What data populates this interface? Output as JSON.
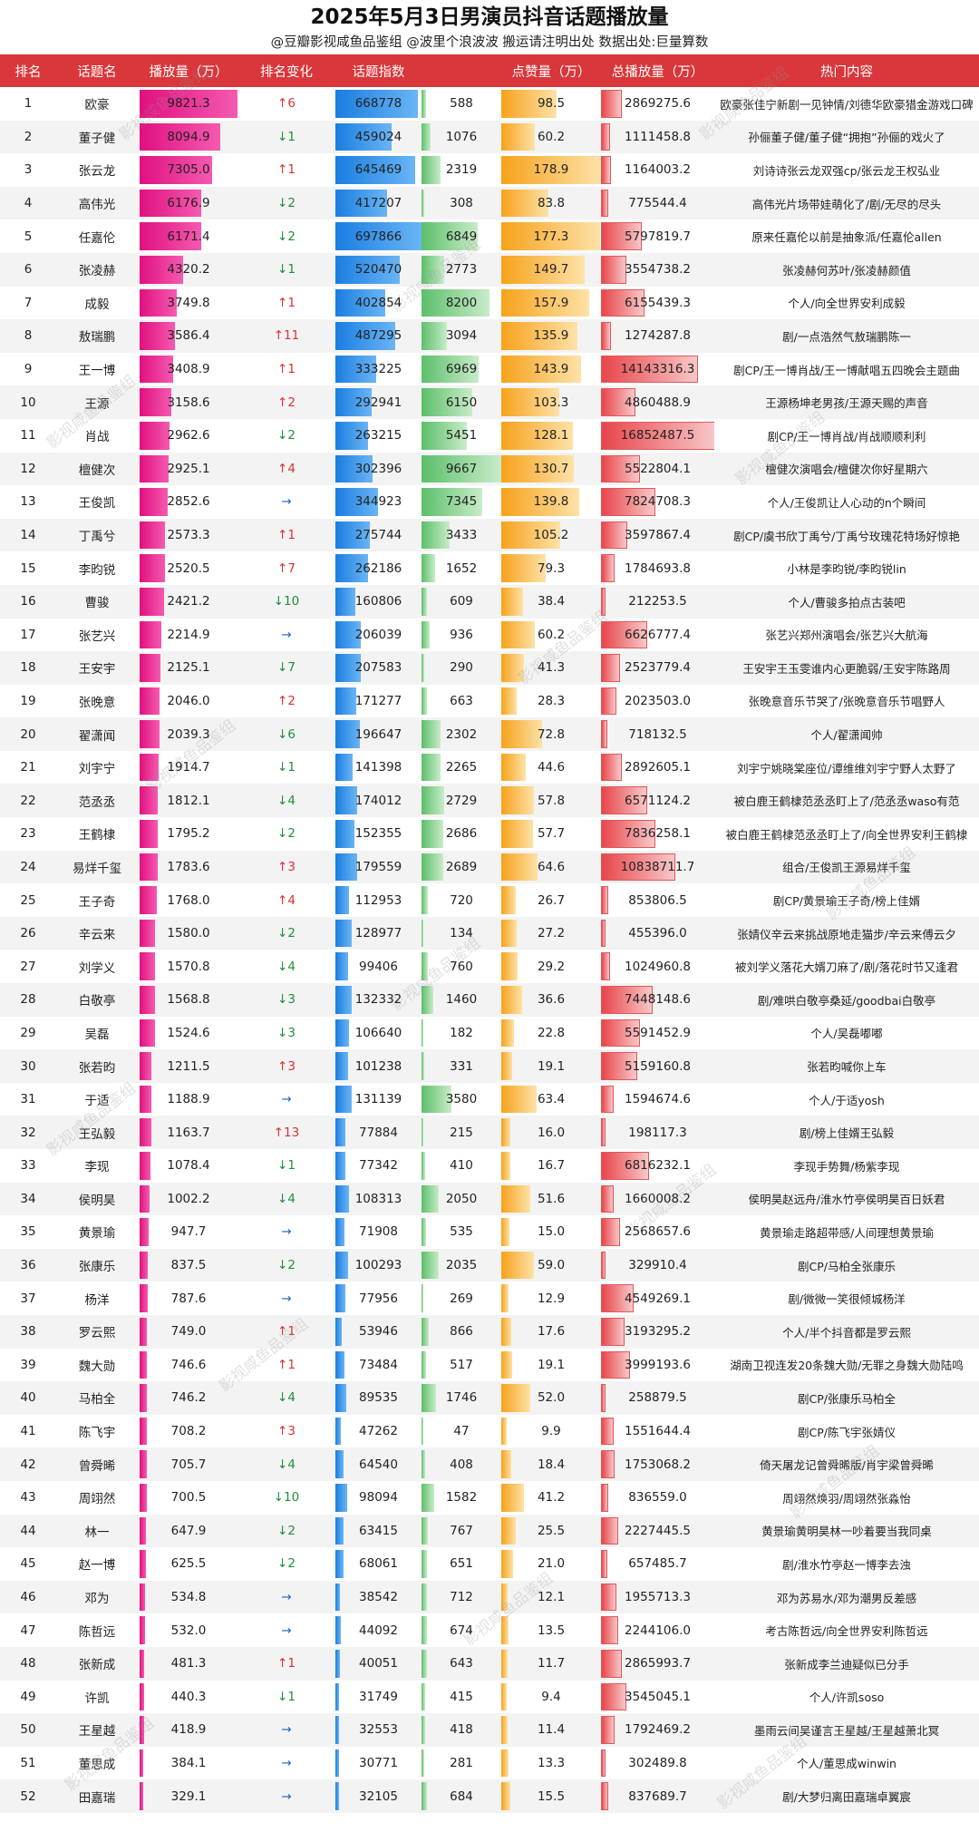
{
  "title": "2025年5月3日男演员抖音话题播放量",
  "subtitle": "@豆瓣影视咸鱼品鉴组 @波里个浪波波  搬运请注明出处  数据出处:巨量算数",
  "watermark": "影视咸鱼品鉴组",
  "headers": [
    "排名",
    "话题名",
    "播放量（万）",
    "排名变化",
    "话题指数",
    "",
    "点赞量（万）",
    "总播放量（万）",
    "热门内容"
  ],
  "colors": {
    "header_bg": "#d9373b",
    "play": "#e0107f",
    "index": "#1a7de0",
    "green": "#5cbf6a",
    "like": "#f7a21b",
    "total": "#e8454a",
    "up": "#e03030",
    "down": "#1f8f3a",
    "flat": "#1a5fd0"
  },
  "chart_data": {
    "type": "table",
    "columns": [
      "排名",
      "话题名",
      "播放量（万）",
      "排名变化",
      "话题指数",
      "",
      "点赞量（万）",
      "总播放量（万）",
      "热门内容"
    ],
    "rows": [
      [
        1,
        "欧豪",
        9821.3,
        "↑6",
        668778,
        588,
        98.5,
        2869275.6,
        "欧豪张佳宁新剧一见钟情/刘德华欧豪猎金游戏口碑"
      ],
      [
        2,
        "董子健",
        8094.9,
        "↓1",
        459024,
        1076,
        60.2,
        1111458.8,
        "孙俪董子健/董子健“拥抱”孙俪的戏火了"
      ],
      [
        3,
        "张云龙",
        7305.0,
        "↑1",
        645469,
        2319,
        178.9,
        1164003.2,
        "刘诗诗张云龙双强cp/张云龙王权弘业"
      ],
      [
        4,
        "高伟光",
        6176.9,
        "↓2",
        417207,
        308,
        83.8,
        775544.4,
        "高伟光片场带娃萌化了/剧/无尽的尽头"
      ],
      [
        5,
        "任嘉伦",
        6171.4,
        "↓2",
        697866,
        6849,
        177.3,
        5797819.7,
        "原来任嘉伦以前是抽象派/任嘉伦allen"
      ],
      [
        6,
        "张凌赫",
        4320.2,
        "↓1",
        520470,
        2773,
        149.7,
        3554738.2,
        "张凌赫何苏叶/张凌赫颜值"
      ],
      [
        7,
        "成毅",
        3749.8,
        "↑1",
        402854,
        8200,
        157.9,
        6155439.3,
        "个人/向全世界安利成毅"
      ],
      [
        8,
        "敖瑞鹏",
        3586.4,
        "↑11",
        487295,
        3094,
        135.9,
        1274287.8,
        "剧/一点浩然气敖瑞鹏陈一"
      ],
      [
        9,
        "王一博",
        3408.9,
        "↑1",
        333225,
        6969,
        143.9,
        14143316.3,
        "剧CP/王一博肖战/王一博献唱五四晚会主题曲"
      ],
      [
        10,
        "王源",
        3158.6,
        "↑2",
        292941,
        6150,
        103.3,
        4860488.9,
        "王源杨坤老男孩/王源天赐的声音"
      ],
      [
        11,
        "肖战",
        2962.6,
        "↓2",
        263215,
        5451,
        128.1,
        16852487.5,
        "剧CP/王一博肖战/肖战顺顺利利"
      ],
      [
        12,
        "檀健次",
        2925.1,
        "↑4",
        302396,
        9667,
        130.7,
        5522804.1,
        "檀健次演唱会/檀健次你好星期六"
      ],
      [
        13,
        "王俊凯",
        2852.6,
        "→",
        344923,
        7345,
        139.8,
        7824708.3,
        "个人/王俊凯让人心动的n个瞬间"
      ],
      [
        14,
        "丁禹兮",
        2573.3,
        "↑1",
        275744,
        3433,
        105.2,
        3597867.4,
        "剧CP/虞书欣丁禹兮/丁禹兮玫瑰花特场好惊艳"
      ],
      [
        15,
        "李昀锐",
        2520.5,
        "↑7",
        262186,
        1652,
        79.3,
        1784693.8,
        "小林是李昀锐/李昀锐lin"
      ],
      [
        16,
        "曹骏",
        2421.2,
        "↓10",
        160806,
        609,
        38.4,
        212253.5,
        "个人/曹骏多拍点古装吧"
      ],
      [
        17,
        "张艺兴",
        2214.9,
        "→",
        206039,
        936,
        60.2,
        6626777.4,
        "张艺兴郑州演唱会/张艺兴大航海"
      ],
      [
        18,
        "王安宇",
        2125.1,
        "↓7",
        207583,
        290,
        41.3,
        2523779.4,
        "王安宇王玉雯谁内心更脆弱/王安宇陈路周"
      ],
      [
        19,
        "张晚意",
        2046.0,
        "↑2",
        171277,
        663,
        28.3,
        2023503.0,
        "张晚意音乐节哭了/张晚意音乐节唱野人"
      ],
      [
        20,
        "翟潇闻",
        2039.3,
        "↓6",
        196647,
        2302,
        72.8,
        718132.5,
        "个人/翟潇闻帅"
      ],
      [
        21,
        "刘宇宁",
        1914.7,
        "↓1",
        141398,
        2265,
        44.6,
        2892605.1,
        "刘宇宁姚晓棠座位/谭维维刘宇宁野人太野了"
      ],
      [
        22,
        "范丞丞",
        1812.1,
        "↓4",
        174012,
        2729,
        57.8,
        6571124.2,
        "被白鹿王鹤棣范丞丞盯上了/范丞丞waso有范"
      ],
      [
        23,
        "王鹤棣",
        1795.2,
        "↓2",
        152355,
        2686,
        57.7,
        7836258.1,
        "被白鹿王鹤棣范丞丞盯上了/向全世界安利王鹤棣"
      ],
      [
        24,
        "易烊千玺",
        1783.6,
        "↑3",
        179559,
        2689,
        64.6,
        10838711.7,
        "组合/王俊凯王源易烊千玺"
      ],
      [
        25,
        "王子奇",
        1768.0,
        "↑4",
        112953,
        720,
        26.7,
        853806.5,
        "剧CP/黄景瑜王子奇/榜上佳婿"
      ],
      [
        26,
        "辛云来",
        1580.0,
        "↓2",
        128977,
        134,
        27.2,
        455396.0,
        "张婧仪辛云来挑战原地走猫步/辛云来傅云夕"
      ],
      [
        27,
        "刘学义",
        1570.8,
        "↓4",
        99406,
        760,
        29.2,
        1024960.8,
        "被刘学义落花大婿刀麻了/剧/落花时节又逢君"
      ],
      [
        28,
        "白敬亭",
        1568.8,
        "↓3",
        132332,
        1460,
        36.6,
        7448148.6,
        "剧/难哄白敬亭桑延/goodbai白敬亭"
      ],
      [
        29,
        "吴磊",
        1524.6,
        "↓3",
        106640,
        182,
        22.8,
        5591452.9,
        "个人/吴磊嘟嘟"
      ],
      [
        30,
        "张若昀",
        1211.5,
        "↑3",
        101238,
        331,
        19.1,
        5159160.8,
        "张若昀喊你上车"
      ],
      [
        31,
        "于适",
        1188.9,
        "→",
        131139,
        3580,
        63.4,
        1594674.6,
        "个人/于适yosh"
      ],
      [
        32,
        "王弘毅",
        1163.7,
        "↑13",
        77884,
        215,
        16.0,
        198117.3,
        "剧/榜上佳婿王弘毅"
      ],
      [
        33,
        "李现",
        1078.4,
        "↓1",
        77342,
        410,
        16.7,
        6816232.1,
        "李现手势舞/杨紫李现"
      ],
      [
        34,
        "侯明昊",
        1002.2,
        "↓4",
        108313,
        2050,
        51.6,
        1660008.2,
        "侯明昊赵远舟/淮水竹亭侯明昊百日妖君"
      ],
      [
        35,
        "黄景瑜",
        947.7,
        "→",
        71908,
        535,
        15.0,
        2568657.6,
        "黄景瑜走路超带感/人间理想黄景瑜"
      ],
      [
        36,
        "张康乐",
        837.5,
        "↓2",
        100293,
        2035,
        59.0,
        329910.4,
        "剧CP/马柏全张康乐"
      ],
      [
        37,
        "杨洋",
        787.6,
        "→",
        77956,
        269,
        12.9,
        4549269.1,
        "剧/微微一笑很倾城杨洋"
      ],
      [
        38,
        "罗云熙",
        749.0,
        "↑1",
        53946,
        866,
        17.6,
        3193295.2,
        "个人/半个抖音都是罗云熙"
      ],
      [
        39,
        "魏大勋",
        746.6,
        "↑1",
        73484,
        517,
        19.1,
        3999193.6,
        "湖南卫视连发20条魏大勋/无罪之身魏大勋陆鸣"
      ],
      [
        40,
        "马柏全",
        746.2,
        "↓4",
        89535,
        1746,
        52.0,
        258879.5,
        "剧CP/张康乐马柏全"
      ],
      [
        41,
        "陈飞宇",
        708.2,
        "↑3",
        47262,
        47,
        9.9,
        1551644.4,
        "剧CP/陈飞宇张婧仪"
      ],
      [
        42,
        "曾舜晞",
        705.7,
        "↓4",
        64540,
        408,
        18.4,
        1753068.2,
        "倚天屠龙记曾舜晞版/肖宇梁曾舜晞"
      ],
      [
        43,
        "周翊然",
        700.5,
        "↓10",
        98094,
        1582,
        41.2,
        836559.0,
        "周翊然焕羽/周翊然张淼怡"
      ],
      [
        44,
        "林一",
        647.9,
        "↓2",
        63415,
        767,
        25.5,
        2227445.5,
        "黄景瑜黄明昊林一吵着要当我同桌"
      ],
      [
        45,
        "赵一博",
        625.5,
        "↓2",
        68061,
        651,
        21.0,
        657485.7,
        "剧/淮水竹亭赵一博李去浊"
      ],
      [
        46,
        "邓为",
        534.8,
        "→",
        38542,
        712,
        12.1,
        1955713.3,
        "邓为苏易水/邓为潮男反差感"
      ],
      [
        47,
        "陈哲远",
        532.0,
        "→",
        44092,
        674,
        13.5,
        2244106.0,
        "考古陈哲远/向全世界安利陈哲远"
      ],
      [
        48,
        "张新成",
        481.3,
        "↑1",
        40051,
        643,
        11.7,
        2865993.7,
        "张新成李兰迪疑似已分手"
      ],
      [
        49,
        "许凯",
        440.3,
        "↓1",
        31749,
        415,
        9.4,
        3545045.1,
        "个人/许凯soso"
      ],
      [
        50,
        "王星越",
        418.9,
        "→",
        32553,
        418,
        11.4,
        1792469.2,
        "墨雨云间吴谨言王星越/王星越萧北冥"
      ],
      [
        51,
        "董思成",
        384.1,
        "→",
        30771,
        281,
        13.3,
        302489.8,
        "个人/董思成winwin"
      ],
      [
        52,
        "田嘉瑞",
        329.1,
        "→",
        32105,
        684,
        15.5,
        837689.7,
        "剧/大梦归离田嘉瑞卓翼宸"
      ]
    ],
    "scales": {
      "play_max": 9821.3,
      "index_max": 697866,
      "col6_max": 9667,
      "like_max": 178.9,
      "total_max": 16852487.5
    }
  }
}
